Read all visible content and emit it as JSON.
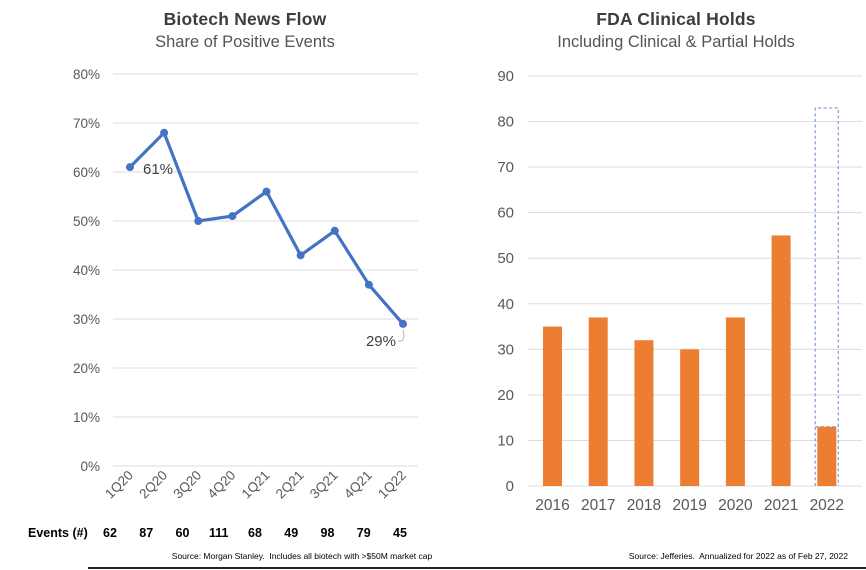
{
  "page": {
    "background": "#ffffff"
  },
  "left_panel": {
    "title": "Biotech News Flow",
    "subtitle": "Share of Positive Events",
    "events_row_label": "Events (#)",
    "source": "Source: Morgan Stanley.  Includes all biotech with >$50M market cap"
  },
  "right_panel": {
    "title": "FDA Clinical Holds",
    "subtitle": "Including Clinical & Partial Holds",
    "source": "Source: Jefferies.  Annualized for 2022 as of Feb 27, 2022"
  },
  "colors": {
    "line": "#4472C4",
    "marker": "#4472C4",
    "bar": "#ED7D31",
    "projected_outline": "#8EA9DB",
    "gridline": "#DCDCDC",
    "axis_text": "#595959",
    "data_label_text": "#404040",
    "leader_line": "#BFBFBF"
  },
  "chart_data": [
    {
      "type": "line",
      "title": "Biotech News Flow",
      "subtitle": "Share of Positive Events",
      "categories": [
        "1Q20",
        "2Q20",
        "3Q20",
        "4Q20",
        "1Q21",
        "2Q21",
        "3Q21",
        "4Q21",
        "1Q22"
      ],
      "values": [
        61,
        68,
        50,
        51,
        56,
        43,
        48,
        37,
        29
      ],
      "point_labels": [
        {
          "index": 0,
          "text": "61%",
          "placement": "right"
        },
        {
          "index": 8,
          "text": "29%",
          "placement": "below-left-with-leader"
        }
      ],
      "events_label": "Events (#)",
      "events_counts": [
        62,
        87,
        60,
        111,
        68,
        49,
        98,
        79,
        45
      ],
      "xlabel": "",
      "ylabel": "",
      "ylim": [
        0,
        80
      ],
      "ytick_step": 10,
      "ytick_suffix": "%",
      "grid": true,
      "legend": "none",
      "source": "Source: Morgan Stanley.  Includes all biotech with >$50M market cap"
    },
    {
      "type": "bar",
      "title": "FDA Clinical Holds",
      "subtitle": "Including Clinical & Partial Holds",
      "categories": [
        "2016",
        "2017",
        "2018",
        "2019",
        "2020",
        "2021",
        "2022"
      ],
      "values": [
        35,
        37,
        32,
        30,
        37,
        55,
        13
      ],
      "projected": {
        "category": "2022",
        "value": 83,
        "style": "dashed-outline"
      },
      "xlabel": "",
      "ylabel": "",
      "ylim": [
        0,
        90
      ],
      "ytick_step": 10,
      "grid": true,
      "legend": "none",
      "source": "Source: Jefferies.  Annualized for 2022 as of Feb 27, 2022"
    }
  ]
}
